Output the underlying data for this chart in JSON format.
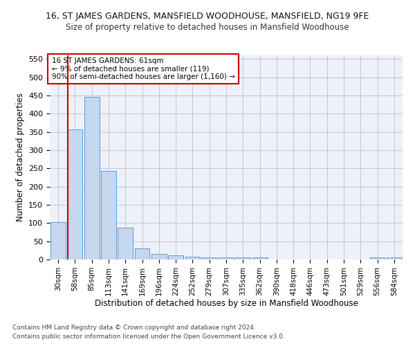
{
  "title": "16, ST JAMES GARDENS, MANSFIELD WOODHOUSE, MANSFIELD, NG19 9FE",
  "subtitle": "Size of property relative to detached houses in Mansfield Woodhouse",
  "xlabel": "Distribution of detached houses by size in Mansfield Woodhouse",
  "ylabel": "Number of detached properties",
  "footnote1": "Contains HM Land Registry data © Crown copyright and database right 2024.",
  "footnote2": "Contains public sector information licensed under the Open Government Licence v3.0.",
  "categories": [
    "30sqm",
    "58sqm",
    "85sqm",
    "113sqm",
    "141sqm",
    "169sqm",
    "196sqm",
    "224sqm",
    "252sqm",
    "279sqm",
    "307sqm",
    "335sqm",
    "362sqm",
    "390sqm",
    "418sqm",
    "446sqm",
    "473sqm",
    "501sqm",
    "529sqm",
    "556sqm",
    "584sqm"
  ],
  "values": [
    102,
    357,
    447,
    243,
    88,
    30,
    15,
    12,
    8,
    5,
    5,
    5,
    5,
    0,
    0,
    0,
    0,
    0,
    0,
    5,
    5
  ],
  "bar_color": "#c5d8f0",
  "bar_edge_color": "#5b9bd5",
  "grid_color": "#c0c8d8",
  "vline_color": "#cc0000",
  "vline_x": 0.555,
  "annotation_text": "16 ST JAMES GARDENS: 61sqm\n← 9% of detached houses are smaller (119)\n90% of semi-detached houses are larger (1,160) →",
  "annotation_box_color": "#ffffff",
  "annotation_box_edge": "#cc0000",
  "ylim": [
    0,
    560
  ],
  "yticks": [
    0,
    50,
    100,
    150,
    200,
    250,
    300,
    350,
    400,
    450,
    500,
    550
  ],
  "bg_color": "#eef2f8",
  "title_fontsize": 9,
  "subtitle_fontsize": 8.5,
  "ylabel_fontsize": 8.5,
  "xlabel_fontsize": 8.5,
  "tick_fontsize": 8,
  "annot_fontsize": 7.5,
  "footnote_fontsize": 6.5
}
